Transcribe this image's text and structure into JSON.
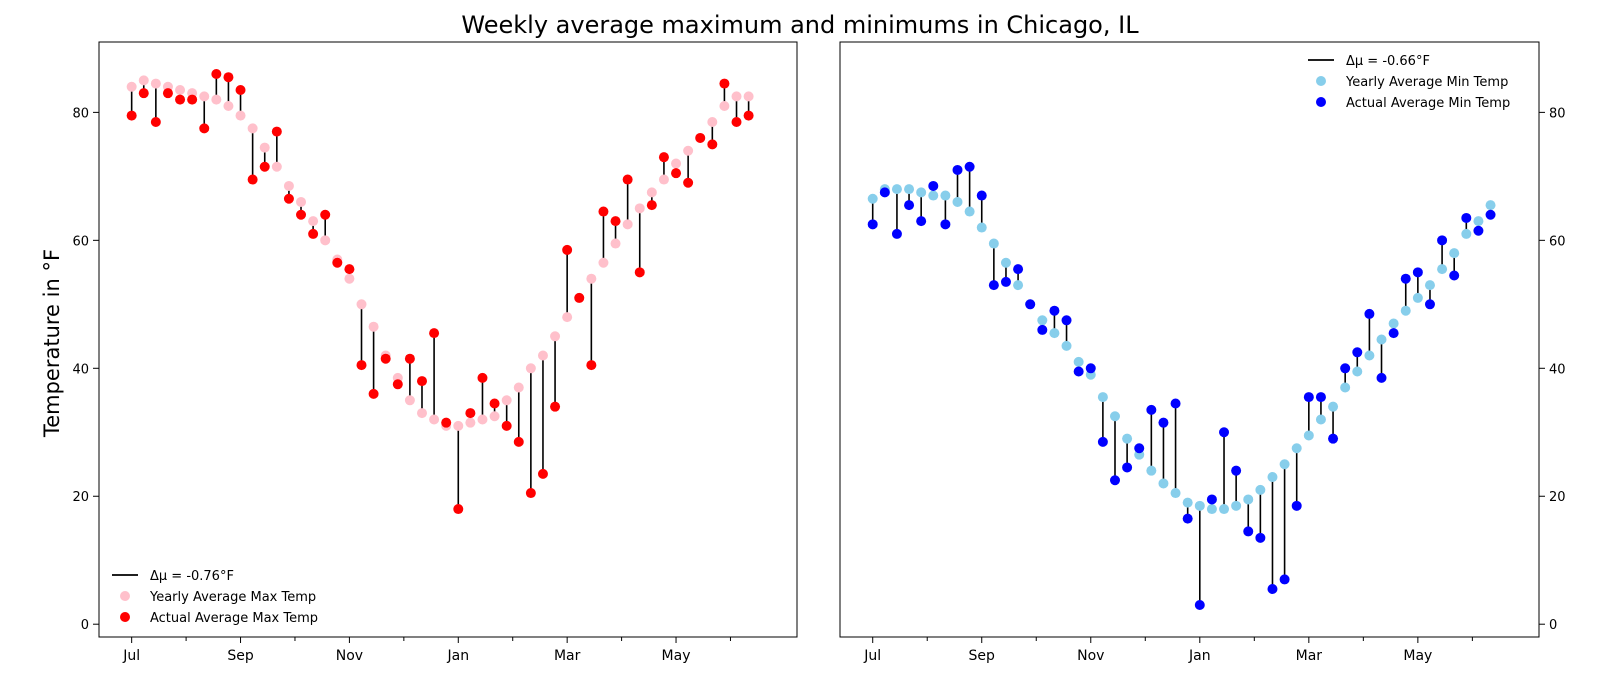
{
  "figure": {
    "title": "Weekly average maximum and minimums in Chicago, IL",
    "ylabel": "Temperature in °F"
  },
  "colors": {
    "max_yearly": "#ffc0cb",
    "max_actual": "#ff0000",
    "min_yearly": "#87ceeb",
    "min_actual": "#0000ff",
    "stem": "#000000"
  },
  "chart_data": [
    {
      "type": "scatter",
      "subtype": "paired-stem",
      "title": "",
      "xlabel": "",
      "ylabel": "Temperature in °F",
      "x_unit": "week index (52 weeks starting early July)",
      "x_ticks": [
        {
          "x": 0,
          "label": "Jul"
        },
        {
          "x": 9,
          "label": "Sep"
        },
        {
          "x": 18,
          "label": "Nov"
        },
        {
          "x": 27,
          "label": "Jan"
        },
        {
          "x": 36,
          "label": "Mar"
        },
        {
          "x": 45,
          "label": "May"
        }
      ],
      "x_minor_ticks": [
        4.5,
        13.5,
        22.5,
        31.5,
        40.5,
        49.5
      ],
      "xlim": [
        -2.7,
        55
      ],
      "ylim": [
        -2,
        91
      ],
      "y_ticks": [
        0,
        20,
        40,
        60,
        80
      ],
      "y_axis_side": "left",
      "grid": false,
      "legend_position": "lower-left",
      "legend": [
        {
          "label": "Δμ = -0.76°F",
          "kind": "line",
          "color_key": "stem"
        },
        {
          "label": "Yearly Average Max Temp",
          "kind": "dot",
          "color_key": "max_yearly"
        },
        {
          "label": "Actual Average Max Temp",
          "kind": "dot",
          "color_key": "max_actual"
        }
      ],
      "series": [
        {
          "name": "Yearly Average Max Temp",
          "color_key": "max_yearly",
          "values": [
            84,
            85,
            84.5,
            84,
            83.5,
            83,
            82.5,
            82,
            81,
            79.5,
            77.5,
            74.5,
            71.5,
            68.5,
            66,
            63,
            60,
            57,
            54,
            50,
            46.5,
            42,
            38.5,
            35,
            33,
            32,
            31,
            31,
            31.5,
            32,
            32.5,
            35,
            37,
            40,
            42,
            45,
            48,
            51,
            54,
            56.5,
            59.5,
            62.5,
            65,
            67.5,
            69.5,
            72,
            74,
            76,
            78.5,
            81,
            82.5,
            82.5
          ]
        },
        {
          "name": "Actual Average Max Temp",
          "color_key": "max_actual",
          "values": [
            79.5,
            83,
            78.5,
            83,
            82,
            82,
            77.5,
            86,
            85.5,
            83.5,
            69.5,
            71.5,
            77,
            66.5,
            64,
            61,
            64,
            56.5,
            55.5,
            40.5,
            36,
            41.5,
            37.5,
            41.5,
            38,
            45.5,
            31.5,
            18,
            33,
            38.5,
            34.5,
            31,
            28.5,
            20.5,
            23.5,
            34,
            58.5,
            51,
            40.5,
            64.5,
            63,
            69.5,
            55,
            65.5,
            73,
            70.5,
            69,
            76,
            75,
            84.5,
            78.5,
            79.5
          ]
        }
      ]
    },
    {
      "type": "scatter",
      "subtype": "paired-stem",
      "title": "",
      "xlabel": "",
      "ylabel": "",
      "x_unit": "week index (52 weeks starting early July)",
      "x_ticks": [
        {
          "x": 0,
          "label": "Jul"
        },
        {
          "x": 9,
          "label": "Sep"
        },
        {
          "x": 18,
          "label": "Nov"
        },
        {
          "x": 27,
          "label": "Jan"
        },
        {
          "x": 36,
          "label": "Mar"
        },
        {
          "x": 45,
          "label": "May"
        }
      ],
      "x_minor_ticks": [
        4.5,
        13.5,
        22.5,
        31.5,
        40.5,
        49.5
      ],
      "xlim": [
        -2.7,
        55
      ],
      "ylim": [
        -2,
        91
      ],
      "y_ticks": [
        0,
        20,
        40,
        60,
        80
      ],
      "y_axis_side": "right",
      "grid": false,
      "legend_position": "upper-right",
      "legend": [
        {
          "label": "Δμ = -0.66°F",
          "kind": "line",
          "color_key": "stem"
        },
        {
          "label": "Yearly Average Min Temp",
          "kind": "dot",
          "color_key": "min_yearly"
        },
        {
          "label": "Actual Average Min Temp",
          "kind": "dot",
          "color_key": "min_actual"
        }
      ],
      "series": [
        {
          "name": "Yearly Average Min Temp",
          "color_key": "min_yearly",
          "values": [
            66.5,
            68,
            68,
            68,
            67.5,
            67,
            67,
            66,
            64.5,
            62,
            59.5,
            56.5,
            53,
            50,
            47.5,
            45.5,
            43.5,
            41,
            39,
            35.5,
            32.5,
            29,
            26.5,
            24,
            22,
            20.5,
            19,
            18.5,
            18,
            18,
            18.5,
            19.5,
            21,
            23,
            25,
            27.5,
            29.5,
            32,
            34,
            37,
            39.5,
            42,
            44.5,
            47,
            49,
            51,
            53,
            55.5,
            58,
            61,
            63,
            65.5
          ]
        },
        {
          "name": "Actual Average Min Temp",
          "color_key": "min_actual",
          "values": [
            62.5,
            67.5,
            61,
            65.5,
            63,
            68.5,
            62.5,
            71,
            71.5,
            67,
            53,
            53.5,
            55.5,
            50,
            46,
            49,
            47.5,
            39.5,
            40,
            28.5,
            22.5,
            24.5,
            27.5,
            33.5,
            31.5,
            34.5,
            16.5,
            3,
            19.5,
            30,
            24,
            14.5,
            13.5,
            5.5,
            7,
            18.5,
            35.5,
            35.5,
            29,
            40,
            42.5,
            48.5,
            38.5,
            45.5,
            54,
            55,
            50,
            60,
            54.5,
            63.5,
            61.5,
            64
          ]
        }
      ]
    }
  ]
}
